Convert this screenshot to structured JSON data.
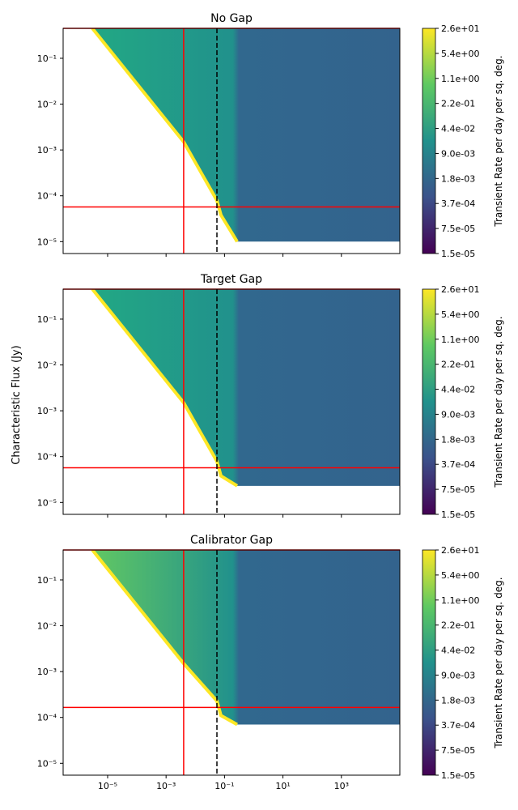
{
  "shared": {
    "ylabel": "Characteristic Flux (Jy)",
    "colorbar_label": "Transient Rate per day per sq. deg.",
    "colorbar_ticks": [
      "2.6e+01",
      "5.4e+00",
      "1.1e+00",
      "2.2e-01",
      "4.4e-02",
      "9.0e-03",
      "1.8e-03",
      "3.7e-04",
      "7.5e-05",
      "1.5e-05"
    ],
    "x_tick_labels": [
      "10⁻⁵",
      "10⁻³",
      "10⁻¹",
      "10¹",
      "10³"
    ],
    "y_tick_labels": [
      "10⁻⁵",
      "10⁻⁴",
      "10⁻³",
      "10⁻²",
      "10⁻¹"
    ],
    "colors": {
      "reference_line": "#ff0000",
      "dashed_line": "#000000",
      "colormap": [
        "#440154",
        "#3b528b",
        "#21918c",
        "#5ec962",
        "#fde725"
      ]
    }
  },
  "chart_data": [
    {
      "type": "heatmap",
      "title": "No Gap",
      "xlabel": "",
      "ylabel": "",
      "x_scale": "log",
      "y_scale": "log",
      "x_range": [
        3e-07,
        100000
      ],
      "y_range": [
        5.5e-06,
        0.45
      ],
      "colorbar": {
        "label": "Transient Rate per day per sq. deg.",
        "scale": "log",
        "range": [
          1.5e-05,
          26
        ]
      },
      "red_vlines_x": [
        0.004
      ],
      "red_hlines_y": [
        5.7e-05
      ],
      "dashed_vlines_x": [
        0.055
      ],
      "top_boundary_y": 0.45,
      "floor_flux_y": 1e-05
    },
    {
      "type": "heatmap",
      "title": "Target Gap",
      "xlabel": "",
      "ylabel": "Characteristic Flux (Jy)",
      "x_scale": "log",
      "y_scale": "log",
      "x_range": [
        3e-07,
        100000
      ],
      "y_range": [
        5.5e-06,
        0.45
      ],
      "colorbar": {
        "label": "Transient Rate per day per sq. deg.",
        "scale": "log",
        "range": [
          1.5e-05,
          26
        ]
      },
      "red_vlines_x": [
        0.004
      ],
      "red_hlines_y": [
        5.7e-05
      ],
      "dashed_vlines_x": [
        0.055
      ],
      "top_boundary_y": 0.45,
      "floor_flux_y": 2.3e-05
    },
    {
      "type": "heatmap",
      "title": "Calibrator Gap",
      "xlabel": "",
      "ylabel": "",
      "x_scale": "log",
      "y_scale": "log",
      "x_range": [
        3e-07,
        100000
      ],
      "y_range": [
        5.5e-06,
        0.45
      ],
      "colorbar": {
        "label": "Transient Rate per day per sq. deg.",
        "scale": "log",
        "range": [
          1.5e-05,
          26
        ]
      },
      "red_vlines_x": [
        0.004
      ],
      "red_hlines_y": [
        0.000165
      ],
      "dashed_vlines_x": [
        0.055
      ],
      "top_boundary_y": 0.45,
      "floor_flux_y": 7e-05
    }
  ]
}
